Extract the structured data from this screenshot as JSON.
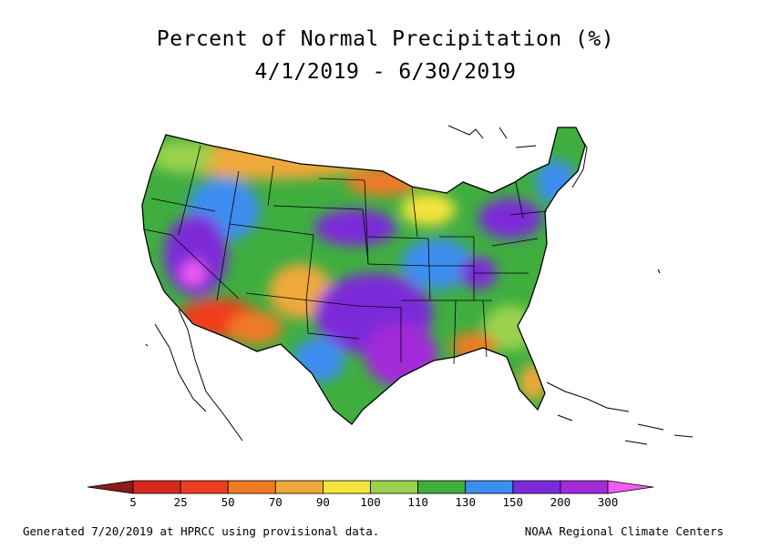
{
  "title": "Percent of Normal Precipitation (%)",
  "subtitle": "4/1/2019 - 6/30/2019",
  "legend": {
    "ticks": [
      "5",
      "25",
      "50",
      "70",
      "90",
      "100",
      "110",
      "130",
      "150",
      "200",
      "300"
    ],
    "colors": [
      "#8b1a1a",
      "#d42a1c",
      "#ef3e1f",
      "#f07a25",
      "#f0a83a",
      "#f2e43a",
      "#9ad24e",
      "#3fae3f",
      "#3c8ef0",
      "#7c2bd8",
      "#a32ad8",
      "#ee5cf5"
    ]
  },
  "footer": {
    "left": "Generated 7/20/2019 at HPRCC using provisional data.",
    "right": "NOAA Regional Climate Centers"
  }
}
